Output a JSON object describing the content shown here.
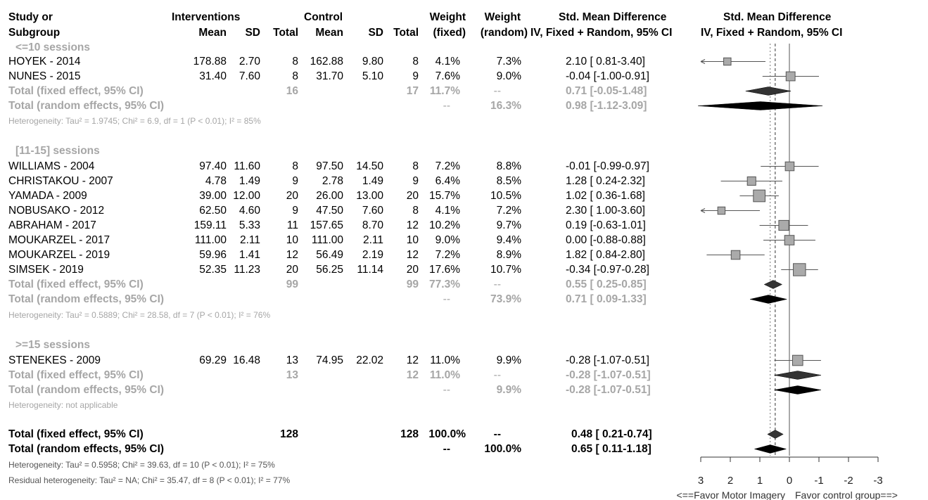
{
  "header": {
    "row1": {
      "study": "Study or",
      "interventions": "Interventions",
      "control": "Control",
      "weight_fixed": "Weight",
      "weight_random": "Weight",
      "smd": "Std. Mean Difference",
      "plot": "Std. Mean Difference"
    },
    "row2": {
      "subgroup": "Subgroup",
      "i_mean": "Mean",
      "i_sd": "SD",
      "i_total": "Total",
      "c_mean": "Mean",
      "c_sd": "SD",
      "c_total": "Total",
      "fixed": "(fixed)",
      "random": "(random)",
      "smd_ci": "IV, Fixed + Random, 95% CI",
      "plot_ci": "IV, Fixed + Random, 95% CI"
    }
  },
  "subgroups": [
    {
      "label": "<=10 sessions",
      "studies": [
        {
          "study": "HOYEK - 2014",
          "i_mean": "178.88",
          "i_sd": "2.70",
          "i_total": "8",
          "c_mean": "162.88",
          "c_sd": "9.80",
          "c_total": "8",
          "w_fixed": "4.1%",
          "w_random": "7.3%",
          "smd": "2.10 [ 0.81-3.40]"
        },
        {
          "study": "NUNES - 2015",
          "i_mean": "31.40",
          "i_sd": "7.60",
          "i_total": "8",
          "c_mean": "31.70",
          "c_sd": "5.10",
          "c_total": "9",
          "w_fixed": "7.6%",
          "w_random": "9.0%",
          "smd": "-0.04 [-1.00-0.91]"
        }
      ],
      "fixed": {
        "label": "Total (fixed effect, 95% CI)",
        "i_total": "16",
        "c_total": "17",
        "w_fixed": "11.7%",
        "w_random": "--",
        "smd": "0.71 [-0.05-1.48]"
      },
      "random": {
        "label": "Total (random effects, 95% CI)",
        "w_fixed": "--",
        "w_random": "16.3%",
        "smd": "0.98 [-1.12-3.09]"
      },
      "heterogeneity": "Heterogeneity: Tau² = 1.9745; Chi² = 6.9, df = 1 (P < 0.01); I² = 85%"
    },
    {
      "label": "[11-15] sessions",
      "studies": [
        {
          "study": "WILLIAMS - 2004",
          "i_mean": "97.40",
          "i_sd": "11.60",
          "i_total": "8",
          "c_mean": "97.50",
          "c_sd": "14.50",
          "c_total": "8",
          "w_fixed": "7.2%",
          "w_random": "8.8%",
          "smd": "-0.01 [-0.99-0.97]"
        },
        {
          "study": "CHRISTAKOU - 2007",
          "i_mean": "4.78",
          "i_sd": "1.49",
          "i_total": "9",
          "c_mean": "2.78",
          "c_sd": "1.49",
          "c_total": "9",
          "w_fixed": "6.4%",
          "w_random": "8.5%",
          "smd": "1.28 [ 0.24-2.32]"
        },
        {
          "study": "YAMADA - 2009",
          "i_mean": "39.00",
          "i_sd": "12.00",
          "i_total": "20",
          "c_mean": "26.00",
          "c_sd": "13.00",
          "c_total": "20",
          "w_fixed": "15.7%",
          "w_random": "10.5%",
          "smd": "1.02 [ 0.36-1.68]"
        },
        {
          "study": "NOBUSAKO - 2012",
          "i_mean": "62.50",
          "i_sd": "4.60",
          "i_total": "9",
          "c_mean": "47.50",
          "c_sd": "7.60",
          "c_total": "8",
          "w_fixed": "4.1%",
          "w_random": "7.2%",
          "smd": "2.30 [ 1.00-3.60]"
        },
        {
          "study": "ABRAHAM - 2017",
          "i_mean": "159.11",
          "i_sd": "5.33",
          "i_total": "11",
          "c_mean": "157.65",
          "c_sd": "8.70",
          "c_total": "12",
          "w_fixed": "10.2%",
          "w_random": "9.7%",
          "smd": "0.19 [-0.63-1.01]"
        },
        {
          "study": "MOUKARZEL - 2017",
          "i_mean": "111.00",
          "i_sd": "2.11",
          "i_total": "10",
          "c_mean": "111.00",
          "c_sd": "2.11",
          "c_total": "10",
          "w_fixed": "9.0%",
          "w_random": "9.4%",
          "smd": "0.00 [-0.88-0.88]"
        },
        {
          "study": "MOUKARZEL - 2019",
          "i_mean": "59.96",
          "i_sd": "1.41",
          "i_total": "12",
          "c_mean": "56.49",
          "c_sd": "2.19",
          "c_total": "12",
          "w_fixed": "7.2%",
          "w_random": "8.9%",
          "smd": "1.82 [ 0.84-2.80]"
        },
        {
          "study": "SIMSEK - 2019",
          "i_mean": "52.35",
          "i_sd": "11.23",
          "i_total": "20",
          "c_mean": "56.25",
          "c_sd": "11.14",
          "c_total": "20",
          "w_fixed": "17.6%",
          "w_random": "10.7%",
          "smd": "-0.34 [-0.97-0.28]"
        }
      ],
      "fixed": {
        "label": "Total (fixed effect, 95% CI)",
        "i_total": "99",
        "c_total": "99",
        "w_fixed": "77.3%",
        "w_random": "--",
        "smd": "0.55 [ 0.25-0.85]"
      },
      "random": {
        "label": "Total (random effects, 95% CI)",
        "w_fixed": "--",
        "w_random": "73.9%",
        "smd": "0.71 [ 0.09-1.33]"
      },
      "heterogeneity": "Heterogeneity: Tau² = 0.5889; Chi² = 28.58, df = 7 (P < 0.01); I² = 76%"
    },
    {
      "label": ">=15 sessions",
      "studies": [
        {
          "study": "STENEKES - 2009",
          "i_mean": "69.29",
          "i_sd": "16.48",
          "i_total": "13",
          "c_mean": "74.95",
          "c_sd": "22.02",
          "c_total": "12",
          "w_fixed": "11.0%",
          "w_random": "9.9%",
          "smd": "-0.28 [-1.07-0.51]"
        }
      ],
      "fixed": {
        "label": "Total (fixed effect, 95% CI)",
        "i_total": "13",
        "c_total": "12",
        "w_fixed": "11.0%",
        "w_random": "--",
        "smd": "-0.28 [-1.07-0.51]"
      },
      "random": {
        "label": "Total (random effects, 95% CI)",
        "w_fixed": "--",
        "w_random": "9.9%",
        "smd": "-0.28 [-1.07-0.51]"
      },
      "heterogeneity": "Heterogeneity: not applicable"
    }
  ],
  "overall": {
    "fixed": {
      "label": "Total (fixed effect, 95% CI)",
      "i_total": "128",
      "c_total": "128",
      "w_fixed": "100.0%",
      "w_random": "--",
      "smd": "0.48 [ 0.21-0.74]"
    },
    "random": {
      "label": "Total (random effects, 95% CI)",
      "w_fixed": "--",
      "w_random": "100.0%",
      "smd": "0.65 [ 0.11-1.18]"
    },
    "heterogeneity": "Heterogeneity: Tau² = 0.5958; Chi² = 39.63, df = 10 (P < 0.01); I² = 75%",
    "residual": "Residual heterogeneity: Tau² = NA; Chi² = 35.47, df = 8 (P < 0.01); I² = 77%"
  },
  "chart_data": {
    "type": "forest",
    "title": "Std. Mean Difference",
    "subtitle": "IV, Fixed + Random, 95% CI",
    "x_axis": {
      "ticks": [
        "3",
        "2",
        "1",
        "0",
        "-1",
        "-2",
        "-3"
      ],
      "range": [
        3,
        -3
      ],
      "reversed": true
    },
    "xlabel_left": "<==Favor Motor Imagery",
    "xlabel_right": "Favor control group==>",
    "reference_line": 0,
    "pooled_fixed_line": 0.48,
    "pooled_random_line": 0.65,
    "studies": [
      {
        "study": "HOYEK - 2014",
        "smd": 2.1,
        "lo": 0.81,
        "hi": 3.4,
        "weight": 4.1
      },
      {
        "study": "NUNES - 2015",
        "smd": -0.04,
        "lo": -1.0,
        "hi": 0.91,
        "weight": 7.6
      },
      {
        "study": "WILLIAMS - 2004",
        "smd": -0.01,
        "lo": -0.99,
        "hi": 0.97,
        "weight": 7.2
      },
      {
        "study": "CHRISTAKOU - 2007",
        "smd": 1.28,
        "lo": 0.24,
        "hi": 2.32,
        "weight": 6.4
      },
      {
        "study": "YAMADA - 2009",
        "smd": 1.02,
        "lo": 0.36,
        "hi": 1.68,
        "weight": 15.7
      },
      {
        "study": "NOBUSAKO - 2012",
        "smd": 2.3,
        "lo": 1.0,
        "hi": 3.6,
        "weight": 4.1
      },
      {
        "study": "ABRAHAM - 2017",
        "smd": 0.19,
        "lo": -0.63,
        "hi": 1.01,
        "weight": 10.2
      },
      {
        "study": "MOUKARZEL - 2017",
        "smd": 0.0,
        "lo": -0.88,
        "hi": 0.88,
        "weight": 9.0
      },
      {
        "study": "MOUKARZEL - 2019",
        "smd": 1.82,
        "lo": 0.84,
        "hi": 2.8,
        "weight": 7.2
      },
      {
        "study": "SIMSEK - 2019",
        "smd": -0.34,
        "lo": -0.97,
        "hi": 0.28,
        "weight": 17.6
      },
      {
        "study": "STENEKES - 2009",
        "smd": -0.28,
        "lo": -1.07,
        "hi": 0.51,
        "weight": 11.0
      }
    ],
    "diamonds": [
      {
        "subgroup": "<=10 sessions",
        "model": "fixed",
        "smd": 0.71,
        "lo": -0.05,
        "hi": 1.48
      },
      {
        "subgroup": "<=10 sessions",
        "model": "random",
        "smd": 0.98,
        "lo": -1.12,
        "hi": 3.09
      },
      {
        "subgroup": "[11-15] sessions",
        "model": "fixed",
        "smd": 0.55,
        "lo": 0.25,
        "hi": 0.85
      },
      {
        "subgroup": "[11-15] sessions",
        "model": "random",
        "smd": 0.71,
        "lo": 0.09,
        "hi": 1.33
      },
      {
        "subgroup": ">=15 sessions",
        "model": "fixed",
        "smd": -0.28,
        "lo": -1.07,
        "hi": 0.51
      },
      {
        "subgroup": ">=15 sessions",
        "model": "random",
        "smd": -0.28,
        "lo": -1.07,
        "hi": 0.51
      },
      {
        "subgroup": "overall",
        "model": "fixed",
        "smd": 0.48,
        "lo": 0.21,
        "hi": 0.74
      },
      {
        "subgroup": "overall",
        "model": "random",
        "smd": 0.65,
        "lo": 0.11,
        "hi": 1.18
      }
    ]
  }
}
